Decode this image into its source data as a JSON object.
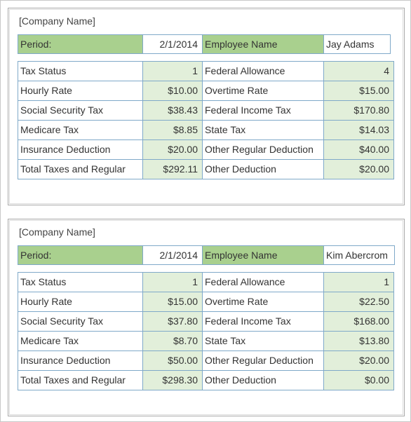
{
  "stubs": [
    {
      "company": "[Company Name]",
      "period_label": "Period:",
      "period": "2/1/2014",
      "employee_label": "Employee Name",
      "employee": "Jay Adams",
      "rows": [
        [
          "Tax Status",
          "1",
          "Federal Allowance",
          "4"
        ],
        [
          "Hourly Rate",
          "$10.00",
          "Overtime Rate",
          "$15.00"
        ],
        [
          "Social Security Tax",
          "$38.43",
          "Federal Income Tax",
          "$170.80"
        ],
        [
          "Medicare Tax",
          "$8.85",
          "State Tax",
          "$14.03"
        ],
        [
          "Insurance Deduction",
          "$20.00",
          "Other Regular Deduction",
          "$40.00"
        ],
        [
          "Total Taxes and Regular",
          "$292.11",
          "Other Deduction",
          "$20.00"
        ]
      ]
    },
    {
      "company": "[Company Name]",
      "period_label": "Period:",
      "period": "2/1/2014",
      "employee_label": "Employee Name",
      "employee": "Kim Abercrom",
      "rows": [
        [
          "Tax Status",
          "1",
          "Federal Allowance",
          "1"
        ],
        [
          "Hourly Rate",
          "$15.00",
          "Overtime Rate",
          "$22.50"
        ],
        [
          "Social Security Tax",
          "$37.80",
          "Federal Income Tax",
          "$168.00"
        ],
        [
          "Medicare Tax",
          "$8.70",
          "State Tax",
          "$13.80"
        ],
        [
          "Insurance Deduction",
          "$50.00",
          "Other Regular Deduction",
          "$20.00"
        ],
        [
          "Total Taxes and Regular",
          "$298.30",
          "Other Deduction",
          "$0.00"
        ]
      ]
    }
  ]
}
